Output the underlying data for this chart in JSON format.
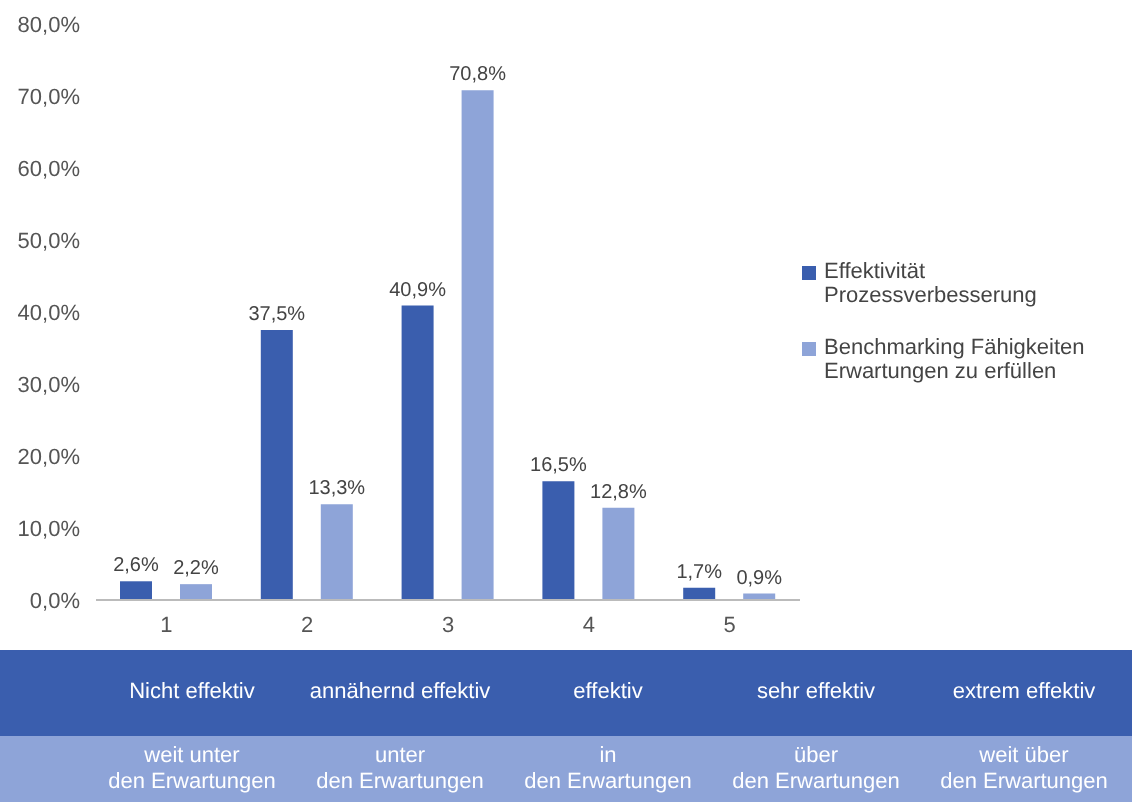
{
  "chart_data": {
    "type": "bar",
    "categories": [
      "1",
      "2",
      "3",
      "4",
      "5"
    ],
    "series": [
      {
        "name": "Effektivität Prozessverbesserung",
        "color": "#3a5eae",
        "values": [
          2.6,
          37.5,
          40.9,
          16.5,
          1.7
        ],
        "value_labels": [
          "2,6%",
          "37,5%",
          "40,9%",
          "16,5%",
          "1,7%"
        ]
      },
      {
        "name": "Benchmarking Fähigkeiten Erwartungen zu erfüllen",
        "color": "#8ea4d8",
        "values": [
          2.2,
          13.3,
          70.8,
          12.8,
          0.9
        ],
        "value_labels": [
          "2,2%",
          "13,3%",
          "70,8%",
          "12,8%",
          "0,9%"
        ]
      }
    ],
    "ylim": [
      0,
      80
    ],
    "yticks": [
      {
        "value": 0,
        "label": "0,0%"
      },
      {
        "value": 10,
        "label": "10,0%"
      },
      {
        "value": 20,
        "label": "20,0%"
      },
      {
        "value": 30,
        "label": "30,0%"
      },
      {
        "value": 40,
        "label": "40,0%"
      },
      {
        "value": 50,
        "label": "50,0%"
      },
      {
        "value": 60,
        "label": "60,0%"
      },
      {
        "value": 70,
        "label": "70,0%"
      },
      {
        "value": 80,
        "label": "80,0%"
      }
    ],
    "grid": false,
    "legend": "right",
    "annotations": [
      "Nicht effektiv",
      "annähernd effektiv",
      "effektiv",
      "sehr effektiv",
      "extrem effektiv",
      "weit unter\nden Erwartungen",
      "unter\nden Erwartungen",
      "in\nden Erwartungen",
      "über\nden Erwartungen",
      "weit über\nden Erwartungen"
    ]
  }
}
